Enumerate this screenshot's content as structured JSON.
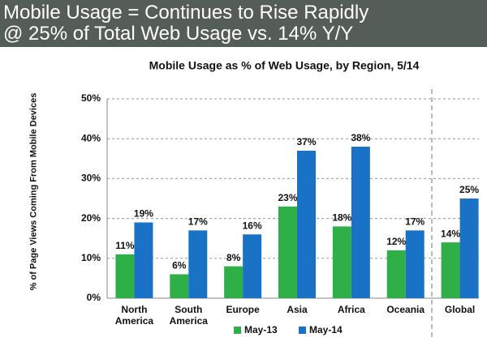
{
  "headline": [
    "Mobile Usage = Continues to Rise Rapidly",
    "@ 25% of Total Web Usage vs. 14% Y/Y"
  ],
  "chart_data": {
    "type": "bar",
    "title": "Mobile Usage as % of Web Usage, by Region, 5/14",
    "y_label": "% of Page Views Coming From Mobile Devices",
    "categories": [
      "North America",
      "South America",
      "Europe",
      "Asia",
      "Africa",
      "Oceania",
      "Global"
    ],
    "series": [
      {
        "name": "May-13",
        "color": "#2eaf47",
        "values": [
          11,
          6,
          8,
          23,
          18,
          12,
          14
        ],
        "value_labels": [
          "11%",
          "6%",
          "8%",
          "23%",
          "18%",
          "12%",
          "14%"
        ]
      },
      {
        "name": "May-14",
        "color": "#1a72c6",
        "values": [
          19,
          17,
          16,
          37,
          38,
          17,
          25
        ],
        "value_labels": [
          "19%",
          "17%",
          "16%",
          "37%",
          "38%",
          "17%",
          "25%"
        ]
      }
    ],
    "ylim": [
      0,
      50
    ],
    "yticks": [
      {
        "value": 0,
        "label": "0%"
      },
      {
        "value": 10,
        "label": "10%"
      },
      {
        "value": 20,
        "label": "20%"
      },
      {
        "value": 30,
        "label": "30%"
      },
      {
        "value": 40,
        "label": "40%"
      },
      {
        "value": 50,
        "label": "50%"
      }
    ],
    "grid": true
  }
}
